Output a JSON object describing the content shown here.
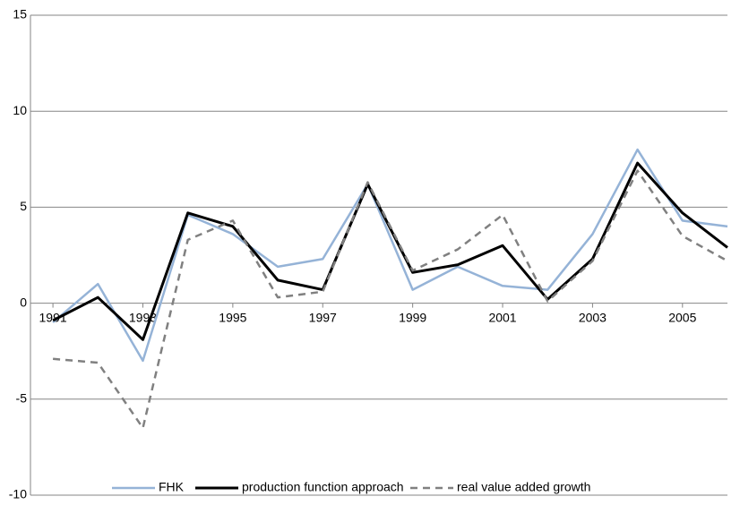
{
  "chart_data": {
    "type": "line",
    "x": [
      1991,
      1992,
      1993,
      1994,
      1995,
      1996,
      1997,
      1998,
      1999,
      2000,
      2001,
      2002,
      2003,
      2004,
      2005,
      2006
    ],
    "xlim": [
      1990.5,
      2006
    ],
    "xticks": [
      1991,
      1993,
      1995,
      1997,
      1999,
      2001,
      2003,
      2005
    ],
    "ylim": [
      -10,
      15
    ],
    "yticks": [
      -10,
      -5,
      0,
      5,
      10,
      15
    ],
    "grid": true,
    "legend": "bottom",
    "series": [
      {
        "name": "FHK",
        "color": "#95b3d7",
        "width": 2.5,
        "dashed": false,
        "values": [
          -1.0,
          1.0,
          -3.0,
          4.6,
          3.6,
          1.9,
          2.3,
          6.2,
          0.7,
          1.9,
          0.9,
          0.7,
          3.6,
          8.0,
          4.3,
          4.0
        ]
      },
      {
        "name": "production function approach",
        "color": "#000000",
        "width": 3,
        "dashed": false,
        "values": [
          -0.9,
          0.3,
          -1.9,
          4.7,
          4.0,
          1.2,
          0.7,
          6.2,
          1.6,
          2.0,
          3.0,
          0.2,
          2.3,
          7.3,
          4.7,
          2.9
        ]
      },
      {
        "name": "real value added growth",
        "color": "#808080",
        "width": 2.5,
        "dashed": true,
        "values": [
          -2.9,
          -3.1,
          -6.5,
          3.3,
          4.3,
          0.3,
          0.6,
          6.3,
          1.7,
          2.8,
          4.6,
          0.1,
          2.2,
          6.9,
          3.5,
          2.2
        ]
      }
    ]
  }
}
